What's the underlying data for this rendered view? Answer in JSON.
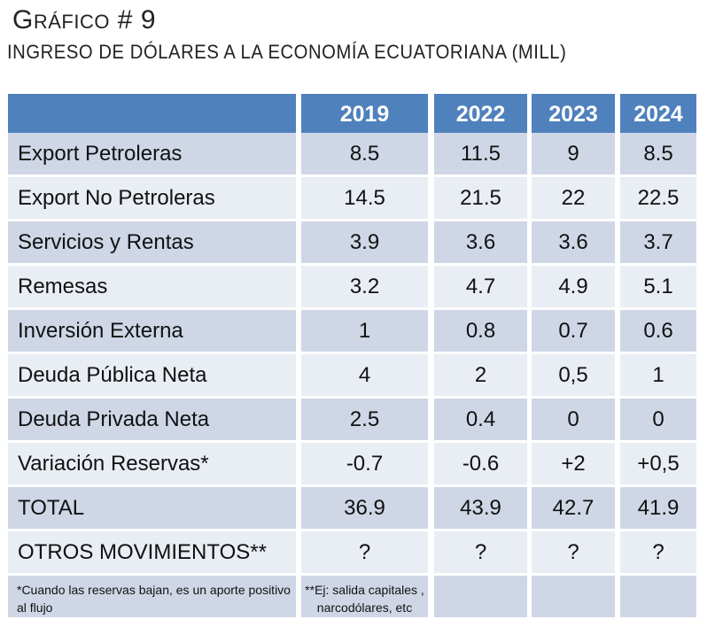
{
  "header": {
    "title_first": "G",
    "title_rest": "ráfico",
    "title_suffix": " # 9",
    "subtitle": "Ingreso de dólares a la economía ecuatoriana (mill)"
  },
  "table": {
    "columns": [
      "",
      "2019",
      "2022",
      "2023",
      "2024"
    ],
    "rows": [
      {
        "label": "Export Petroleras",
        "values": [
          "8.5",
          "11.5",
          "9",
          "8.5"
        ]
      },
      {
        "label": "Export No Petroleras",
        "values": [
          "14.5",
          "21.5",
          "22",
          "22.5"
        ]
      },
      {
        "label": "Servicios y Rentas",
        "values": [
          "3.9",
          "3.6",
          "3.6",
          "3.7"
        ]
      },
      {
        "label": "Remesas",
        "values": [
          "3.2",
          "4.7",
          "4.9",
          "5.1"
        ]
      },
      {
        "label": "Inversión Externa",
        "values": [
          "1",
          "0.8",
          "0.7",
          "0.6"
        ]
      },
      {
        "label": "Deuda Pública Neta",
        "values": [
          "4",
          "2",
          "0,5",
          "1"
        ]
      },
      {
        "label": "Deuda Privada Neta",
        "values": [
          "2.5",
          "0.4",
          "0",
          "0"
        ]
      },
      {
        "label": "Variación Reservas*",
        "values": [
          "-0.7",
          "-0.6",
          "+2",
          "+0,5"
        ]
      },
      {
        "label": "TOTAL",
        "values": [
          "36.9",
          "43.9",
          "42.7",
          "41.9"
        ]
      },
      {
        "label": "OTROS MOVIMIENTOS**",
        "values": [
          "?",
          "?",
          "?",
          "?"
        ]
      }
    ],
    "footnotes": {
      "reserves_note": "*Cuando las reservas bajan, es un aporte positivo al flujo",
      "other_movements_note": "**Ej: salida capitales , narcodólares, etc"
    }
  },
  "colors": {
    "header_bg": "#4F81BD",
    "row_dark": "#CFD7E6",
    "row_light": "#E9EDF4"
  }
}
